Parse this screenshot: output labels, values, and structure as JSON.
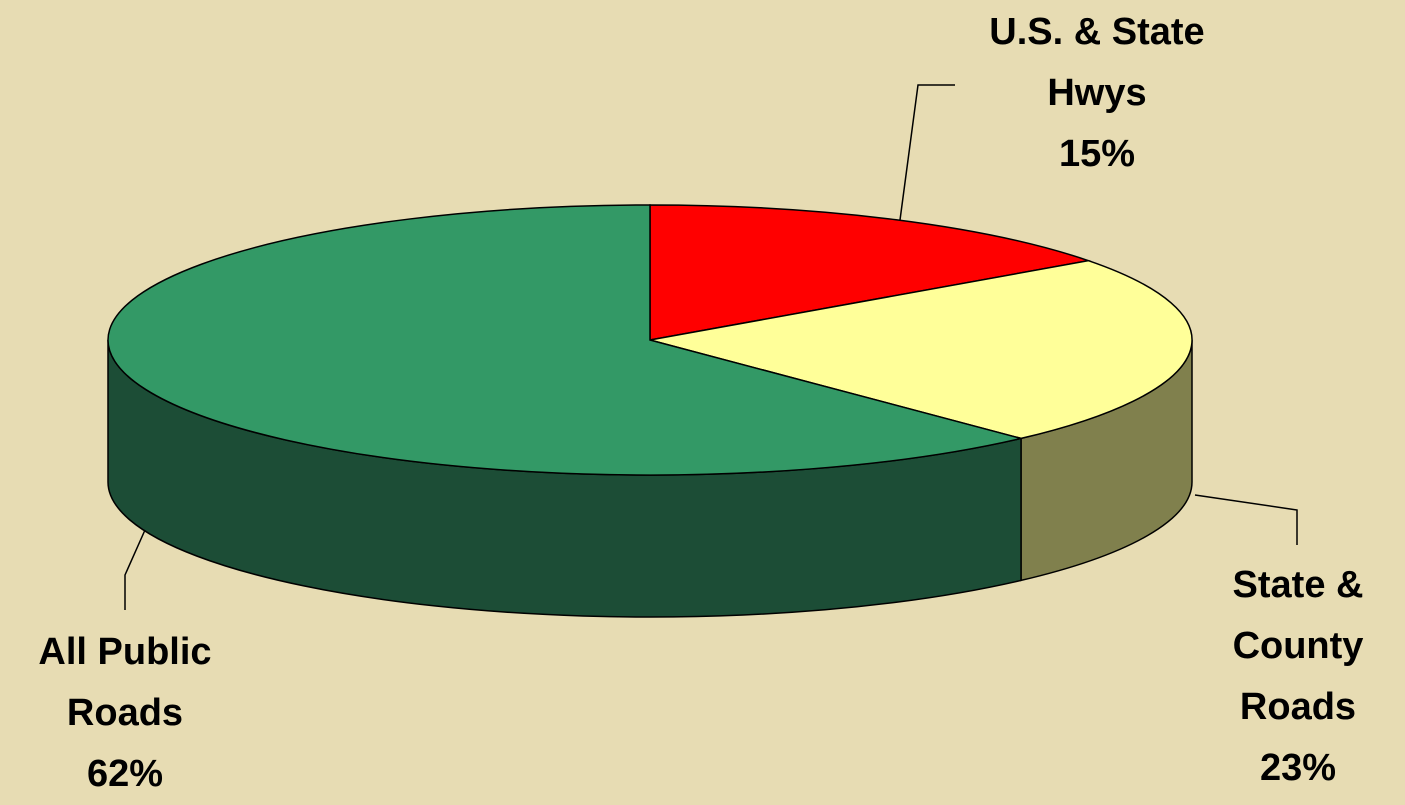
{
  "chart_data": {
    "type": "pie",
    "categories": [
      "U.S. & State Hwys",
      "State & County Roads",
      "All Public Roads"
    ],
    "values": [
      15,
      23,
      62
    ],
    "value_labels": [
      "15%",
      "23%",
      "62%"
    ],
    "colors": [
      "#ff0000",
      "#ffff99",
      "#339966"
    ],
    "side_colors": [
      "#800000",
      "#80804d",
      "#1c4d36"
    ]
  }
}
